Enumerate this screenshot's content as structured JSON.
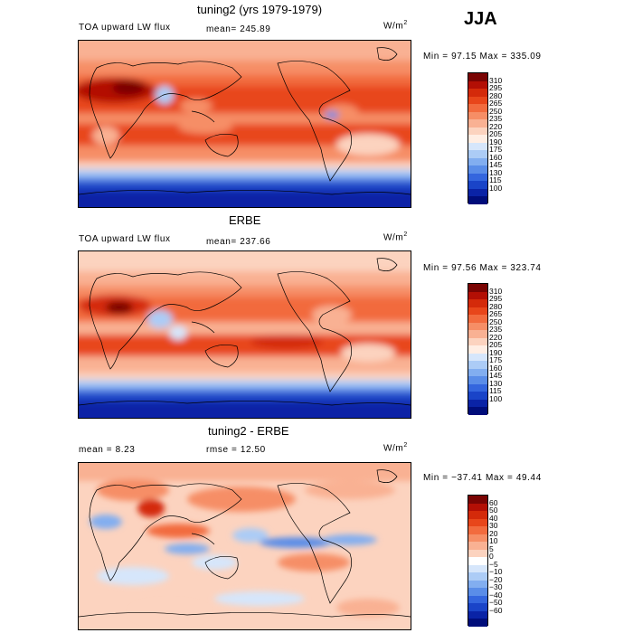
{
  "season": "JJA",
  "panels": [
    {
      "title": "tuning2 (yrs 1979-1979)",
      "left_label": "TOA upward LW flux",
      "mean_text": "mean= 245.89",
      "units": "W/m",
      "units_sup": "2",
      "minmax": "Min =  97.15 Max = 335.09",
      "colorbar": {
        "labels": [
          "310",
          "295",
          "280",
          "265",
          "250",
          "235",
          "220",
          "205",
          "190",
          "175",
          "160",
          "145",
          "130",
          "115",
          "100"
        ],
        "colors": [
          "#7a0403",
          "#b30f05",
          "#d42a0a",
          "#e8461a",
          "#f26b3e",
          "#f68e66",
          "#f9b193",
          "#fcd3bf",
          "#ffeee4",
          "#d6e6fb",
          "#acccf6",
          "#82aef0",
          "#5a8de8",
          "#3466de",
          "#1a44c8",
          "#0a23a6",
          "#000d7a"
        ]
      }
    },
    {
      "title": "ERBE",
      "left_label": "TOA upward LW flux",
      "mean_text": "mean= 237.66",
      "units": "W/m",
      "units_sup": "2",
      "minmax": "Min =  97.56 Max = 323.74",
      "colorbar": {
        "labels": [
          "310",
          "295",
          "280",
          "265",
          "250",
          "235",
          "220",
          "205",
          "190",
          "175",
          "160",
          "145",
          "130",
          "115",
          "100"
        ],
        "colors": [
          "#7a0403",
          "#b30f05",
          "#d42a0a",
          "#e8461a",
          "#f26b3e",
          "#f68e66",
          "#f9b193",
          "#fcd3bf",
          "#ffeee4",
          "#d6e6fb",
          "#acccf6",
          "#82aef0",
          "#5a8de8",
          "#3466de",
          "#1a44c8",
          "#0a23a6",
          "#000d7a"
        ]
      }
    },
    {
      "title": "tuning2 - ERBE",
      "left_label": "mean =    8.23",
      "mean_text": "rmse =   12.50",
      "units": "W/m",
      "units_sup": "2",
      "minmax": "Min = −37.41 Max =  49.44",
      "colorbar": {
        "labels": [
          "60",
          "50",
          "40",
          "30",
          "20",
          "10",
          "5",
          "0",
          "−5",
          "−10",
          "−20",
          "−30",
          "−40",
          "−50",
          "−60"
        ],
        "colors": [
          "#7a0403",
          "#b30f05",
          "#d42a0a",
          "#e8461a",
          "#f26b3e",
          "#f68e66",
          "#f9b193",
          "#fcd3bf",
          "#ffffff",
          "#d6e6fb",
          "#acccf6",
          "#82aef0",
          "#5a8de8",
          "#3466de",
          "#1a44c8",
          "#0a23a6",
          "#000d7a"
        ]
      }
    }
  ]
}
